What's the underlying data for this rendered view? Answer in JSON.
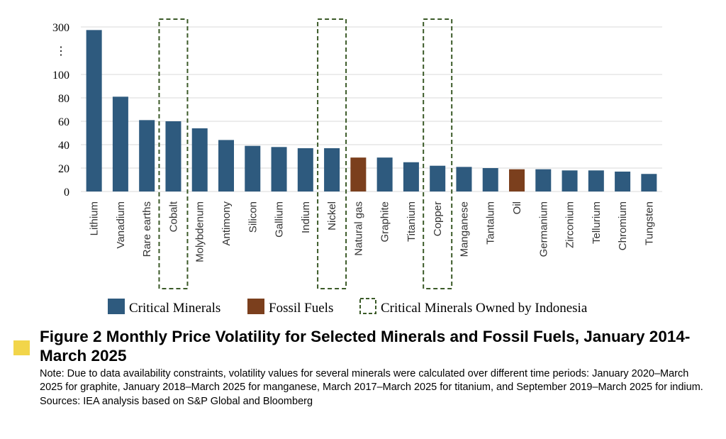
{
  "chart_data": {
    "type": "bar",
    "categories": [
      "Lithium",
      "Vanadium",
      "Rare earths",
      "Cobalt",
      "Molybdenum",
      "Antimony",
      "Silicon",
      "Gallium",
      "Indium",
      "Nickel",
      "Natural gas",
      "Graphite",
      "Titanium",
      "Copper",
      "Manganese",
      "Tantalum",
      "Oil",
      "Germanium",
      "Zirconium",
      "Tellurium",
      "Chromium",
      "Tungsten"
    ],
    "values": [
      287,
      81,
      61,
      60,
      54,
      44,
      39,
      38,
      37,
      37,
      29,
      29,
      25,
      22,
      21,
      20,
      19,
      19,
      18,
      18,
      17,
      15
    ],
    "groups": [
      "Critical Minerals",
      "Critical Minerals",
      "Critical Minerals",
      "Critical Minerals",
      "Critical Minerals",
      "Critical Minerals",
      "Critical Minerals",
      "Critical Minerals",
      "Critical Minerals",
      "Critical Minerals",
      "Fossil Fuels",
      "Critical Minerals",
      "Critical Minerals",
      "Critical Minerals",
      "Critical Minerals",
      "Critical Minerals",
      "Fossil Fuels",
      "Critical Minerals",
      "Critical Minerals",
      "Critical Minerals",
      "Critical Minerals",
      "Critical Minerals"
    ],
    "highlighted": [
      "Cobalt",
      "Nickel",
      "Copper"
    ],
    "y_ticks": [
      "0",
      "20",
      "40",
      "60",
      "80",
      "100",
      "300"
    ],
    "y_break_symbol": "⋮",
    "ylim": [
      0,
      300
    ],
    "axis_break": {
      "from": 100,
      "to": 300
    },
    "grid": true,
    "legend": [
      {
        "label": "Critical Minerals",
        "color": "#2e5a7e",
        "style": "fill"
      },
      {
        "label": "Fossil Fuels",
        "color": "#7b3f1d",
        "style": "fill"
      },
      {
        "label": "Critical Minerals Owned by Indonesia",
        "color": "#3b5a28",
        "style": "dashed"
      }
    ],
    "legend_position": "bottom",
    "colors": {
      "Critical Minerals": "#2e5a7e",
      "Fossil Fuels": "#7b3f1d",
      "highlight": "#3b5a28"
    }
  },
  "caption": {
    "marker_color": "#f2d54a",
    "title": "Figure 2 Monthly Price Volatility for Selected Minerals and Fossil Fuels, January 2014-March 2025",
    "note": "Note: Due to data availability constraints, volatility values for several minerals were calculated over different time periods: January 2020–March 2025 for graphite, January 2018–March 2025 for manganese, March 2017–March 2025 for titanium, and September 2019–March 2025 for indium.",
    "sources": "Sources: IEA analysis based on S&P Global and Bloomberg"
  }
}
